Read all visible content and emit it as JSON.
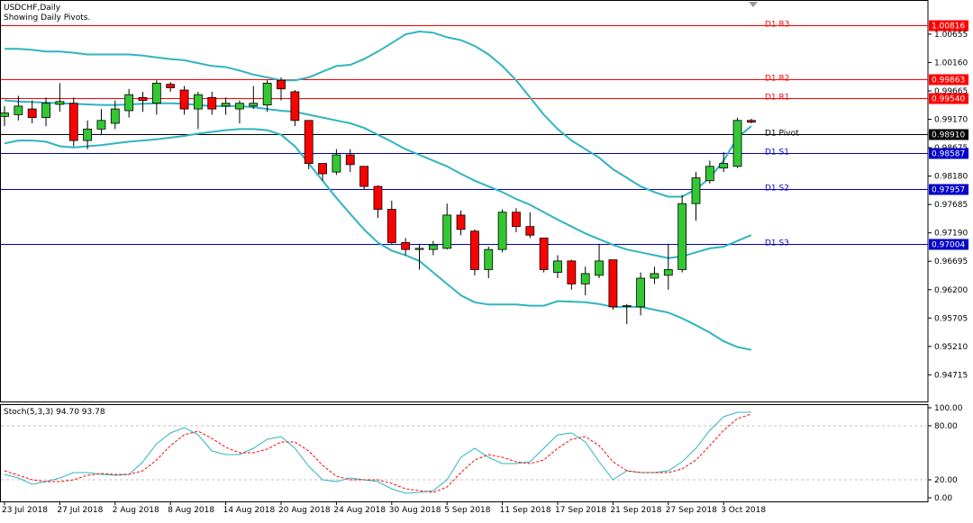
{
  "header": {
    "title": "USDCHF,Daily",
    "subtitle": "Showing Daily Pivots."
  },
  "colors": {
    "bull": "#32c832",
    "bear": "#ff0000",
    "band": "#30b4c0",
    "resistance": "#ff0000",
    "support": "#0000c8",
    "pivot": "#000000",
    "stoch_main": "#30b4c0",
    "stoch_signal": "#ff0000",
    "grid": "#c0c0c0"
  },
  "chart_data": [
    {
      "type": "candlestick",
      "title": "USDCHF,Daily",
      "ylim": [
        0.9425,
        1.0125
      ],
      "y_ticks": [
        "1.00655",
        "1.00160",
        "0.99665",
        "0.99170",
        "0.98675",
        "0.98180",
        "0.97685",
        "0.97190",
        "0.96695",
        "0.96200",
        "0.95705",
        "0.95210",
        "0.94715"
      ],
      "x_tick_labels": [
        "23 Jul 2018",
        "27 Jul 2018",
        "2 Aug 2018",
        "8 Aug 2018",
        "14 Aug 2018",
        "20 Aug 2018",
        "24 Aug 2018",
        "30 Aug 2018",
        "5 Sep 2018",
        "11 Sep 2018",
        "17 Sep 2018",
        "21 Sep 2018",
        "27 Sep 2018",
        "3 Oct 2018"
      ],
      "candles": [
        {
          "o": 0.9922,
          "h": 0.994,
          "l": 0.9905,
          "c": 0.9928
        },
        {
          "o": 0.9925,
          "h": 0.9958,
          "l": 0.9915,
          "c": 0.994
        },
        {
          "o": 0.9935,
          "h": 0.995,
          "l": 0.991,
          "c": 0.992
        },
        {
          "o": 0.992,
          "h": 0.9955,
          "l": 0.9905,
          "c": 0.9945
        },
        {
          "o": 0.9943,
          "h": 0.998,
          "l": 0.993,
          "c": 0.9948
        },
        {
          "o": 0.9945,
          "h": 0.9955,
          "l": 0.987,
          "c": 0.988
        },
        {
          "o": 0.988,
          "h": 0.9915,
          "l": 0.9865,
          "c": 0.99
        },
        {
          "o": 0.99,
          "h": 0.9935,
          "l": 0.989,
          "c": 0.9915
        },
        {
          "o": 0.991,
          "h": 0.995,
          "l": 0.99,
          "c": 0.9935
        },
        {
          "o": 0.9932,
          "h": 0.997,
          "l": 0.992,
          "c": 0.996
        },
        {
          "o": 0.9955,
          "h": 0.9965,
          "l": 0.993,
          "c": 0.995
        },
        {
          "o": 0.9945,
          "h": 0.9985,
          "l": 0.9925,
          "c": 0.998
        },
        {
          "o": 0.9978,
          "h": 0.9982,
          "l": 0.9965,
          "c": 0.9972
        },
        {
          "o": 0.9968,
          "h": 0.9975,
          "l": 0.9925,
          "c": 0.9935
        },
        {
          "o": 0.9935,
          "h": 0.9965,
          "l": 0.99,
          "c": 0.996
        },
        {
          "o": 0.9955,
          "h": 0.9965,
          "l": 0.9925,
          "c": 0.9935
        },
        {
          "o": 0.994,
          "h": 0.9955,
          "l": 0.9925,
          "c": 0.9945
        },
        {
          "o": 0.9935,
          "h": 0.995,
          "l": 0.991,
          "c": 0.9945
        },
        {
          "o": 0.994,
          "h": 0.9975,
          "l": 0.9935,
          "c": 0.9945
        },
        {
          "o": 0.9942,
          "h": 0.9985,
          "l": 0.993,
          "c": 0.998
        },
        {
          "o": 0.9985,
          "h": 0.999,
          "l": 0.995,
          "c": 0.997
        },
        {
          "o": 0.9965,
          "h": 0.9968,
          "l": 0.9905,
          "c": 0.9915
        },
        {
          "o": 0.9915,
          "h": 0.9915,
          "l": 0.983,
          "c": 0.984
        },
        {
          "o": 0.984,
          "h": 0.984,
          "l": 0.981,
          "c": 0.9822
        },
        {
          "o": 0.9825,
          "h": 0.9865,
          "l": 0.982,
          "c": 0.9855
        },
        {
          "o": 0.9855,
          "h": 0.9865,
          "l": 0.9825,
          "c": 0.9838
        },
        {
          "o": 0.9835,
          "h": 0.9835,
          "l": 0.9795,
          "c": 0.98
        },
        {
          "o": 0.98,
          "h": 0.9802,
          "l": 0.9745,
          "c": 0.976
        },
        {
          "o": 0.976,
          "h": 0.9775,
          "l": 0.97,
          "c": 0.9702
        },
        {
          "o": 0.9702,
          "h": 0.971,
          "l": 0.968,
          "c": 0.969
        },
        {
          "o": 0.969,
          "h": 0.97,
          "l": 0.9655,
          "c": 0.9692
        },
        {
          "o": 0.969,
          "h": 0.9705,
          "l": 0.968,
          "c": 0.9698
        },
        {
          "o": 0.9692,
          "h": 0.977,
          "l": 0.969,
          "c": 0.975
        },
        {
          "o": 0.975,
          "h": 0.9758,
          "l": 0.9715,
          "c": 0.9725
        },
        {
          "o": 0.9722,
          "h": 0.9725,
          "l": 0.9645,
          "c": 0.9655
        },
        {
          "o": 0.9655,
          "h": 0.9695,
          "l": 0.964,
          "c": 0.969
        },
        {
          "o": 0.969,
          "h": 0.976,
          "l": 0.9685,
          "c": 0.9755
        },
        {
          "o": 0.9755,
          "h": 0.9762,
          "l": 0.972,
          "c": 0.973
        },
        {
          "o": 0.973,
          "h": 0.9755,
          "l": 0.971,
          "c": 0.9715
        },
        {
          "o": 0.971,
          "h": 0.971,
          "l": 0.965,
          "c": 0.9655
        },
        {
          "o": 0.965,
          "h": 0.968,
          "l": 0.964,
          "c": 0.967
        },
        {
          "o": 0.967,
          "h": 0.9672,
          "l": 0.962,
          "c": 0.963
        },
        {
          "o": 0.963,
          "h": 0.966,
          "l": 0.961,
          "c": 0.9648
        },
        {
          "o": 0.9645,
          "h": 0.97,
          "l": 0.964,
          "c": 0.967
        },
        {
          "o": 0.9672,
          "h": 0.9672,
          "l": 0.9585,
          "c": 0.959
        },
        {
          "o": 0.9592,
          "h": 0.9595,
          "l": 0.956,
          "c": 0.9592
        },
        {
          "o": 0.959,
          "h": 0.965,
          "l": 0.9575,
          "c": 0.964
        },
        {
          "o": 0.964,
          "h": 0.966,
          "l": 0.963,
          "c": 0.9648
        },
        {
          "o": 0.9645,
          "h": 0.97,
          "l": 0.962,
          "c": 0.9655
        },
        {
          "o": 0.9655,
          "h": 0.9785,
          "l": 0.965,
          "c": 0.977
        },
        {
          "o": 0.977,
          "h": 0.9825,
          "l": 0.974,
          "c": 0.9815
        },
        {
          "o": 0.981,
          "h": 0.9845,
          "l": 0.9805,
          "c": 0.9835
        },
        {
          "o": 0.9832,
          "h": 0.986,
          "l": 0.9825,
          "c": 0.984
        },
        {
          "o": 0.9835,
          "h": 0.992,
          "l": 0.9832,
          "c": 0.9915
        },
        {
          "o": 0.9915,
          "h": 0.9918,
          "l": 0.991,
          "c": 0.9912
        }
      ],
      "bollinger": {
        "upper": [
          1.004,
          1.004,
          1.0038,
          1.0035,
          1.0035,
          1.0033,
          1.003,
          1.003,
          1.003,
          1.003,
          1.0028,
          1.0025,
          1.0022,
          1.002,
          1.0015,
          1.001,
          1.0008,
          1.0002,
          0.9995,
          0.999,
          0.9985,
          0.9985,
          0.999,
          1.0,
          1.001,
          1.0012,
          1.0022,
          1.0035,
          1.005,
          1.0065,
          1.007,
          1.0068,
          1.006,
          1.0055,
          1.0045,
          1.003,
          1.001,
          0.9985,
          0.9955,
          0.9925,
          0.99,
          0.988,
          0.9865,
          0.985,
          0.983,
          0.9815,
          0.98,
          0.979,
          0.9782,
          0.9782,
          0.9795,
          0.9815,
          0.9845,
          0.9885,
          0.9905
        ],
        "middle": [
          0.995,
          0.9948,
          0.9947,
          0.9946,
          0.9945,
          0.9944,
          0.9943,
          0.9942,
          0.9942,
          0.9943,
          0.9944,
          0.9945,
          0.9945,
          0.9944,
          0.9942,
          0.994,
          0.994,
          0.994,
          0.9938,
          0.9935,
          0.9932,
          0.993,
          0.9925,
          0.992,
          0.9915,
          0.991,
          0.9902,
          0.989,
          0.9878,
          0.9865,
          0.9855,
          0.9845,
          0.9835,
          0.9822,
          0.981,
          0.98,
          0.979,
          0.9778,
          0.9768,
          0.9755,
          0.9742,
          0.973,
          0.9718,
          0.9708,
          0.9698,
          0.969,
          0.9685,
          0.968,
          0.9675,
          0.9678,
          0.9685,
          0.9692,
          0.9695,
          0.9705,
          0.9715
        ],
        "lower": [
          0.9875,
          0.988,
          0.988,
          0.9878,
          0.987,
          0.9868,
          0.987,
          0.9872,
          0.9875,
          0.9878,
          0.988,
          0.9882,
          0.9885,
          0.9888,
          0.9892,
          0.9895,
          0.9898,
          0.99,
          0.99,
          0.9898,
          0.989,
          0.987,
          0.984,
          0.981,
          0.978,
          0.9752,
          0.9725,
          0.9702,
          0.9688,
          0.968,
          0.967,
          0.965,
          0.963,
          0.961,
          0.9598,
          0.9594,
          0.9594,
          0.9594,
          0.9592,
          0.9592,
          0.96,
          0.9599,
          0.9598,
          0.9595,
          0.959,
          0.959,
          0.959,
          0.9585,
          0.958,
          0.957,
          0.9558,
          0.9545,
          0.953,
          0.952,
          0.9515
        ]
      },
      "pivots": [
        {
          "label": "D1 R3",
          "value": "1.00816",
          "kind": "resistance"
        },
        {
          "label": "D1 R2",
          "value": "0.99863",
          "kind": "resistance"
        },
        {
          "label": "D1 R1",
          "value": "0.99540",
          "kind": "resistance"
        },
        {
          "label": "D1 Pivot",
          "value": "0.98910",
          "kind": "pivot"
        },
        {
          "label": "D1 S1",
          "value": "0.98587",
          "kind": "support"
        },
        {
          "label": "D1 S2",
          "value": "0.97957",
          "kind": "support"
        },
        {
          "label": "D1 S3",
          "value": "0.97004",
          "kind": "support"
        }
      ]
    },
    {
      "type": "line",
      "title": "Stoch(5,3,3) 94.70 93.78",
      "ylim": [
        0,
        100
      ],
      "y_ticks": [
        "100.00",
        "80.00",
        "20.00",
        "0.00"
      ],
      "levels": [
        80,
        20
      ],
      "series": [
        {
          "role": "main",
          "values": [
            26,
            22,
            15,
            18,
            22,
            28,
            28,
            26,
            25,
            26,
            40,
            60,
            72,
            78,
            70,
            52,
            48,
            48,
            55,
            65,
            68,
            55,
            35,
            20,
            18,
            22,
            20,
            18,
            10,
            5,
            6,
            8,
            20,
            45,
            55,
            45,
            38,
            38,
            40,
            55,
            70,
            72,
            62,
            40,
            20,
            30,
            28,
            28,
            30,
            40,
            55,
            75,
            90,
            95,
            95
          ]
        },
        {
          "role": "signal",
          "values": [
            30,
            25,
            20,
            18,
            18,
            20,
            25,
            27,
            26,
            26,
            30,
            42,
            58,
            70,
            74,
            66,
            56,
            50,
            50,
            54,
            62,
            62,
            52,
            36,
            24,
            20,
            20,
            20,
            16,
            10,
            8,
            6,
            12,
            28,
            42,
            48,
            45,
            40,
            38,
            42,
            55,
            65,
            68,
            58,
            40,
            30,
            28,
            28,
            28,
            32,
            42,
            58,
            75,
            88,
            93
          ]
        }
      ]
    }
  ]
}
